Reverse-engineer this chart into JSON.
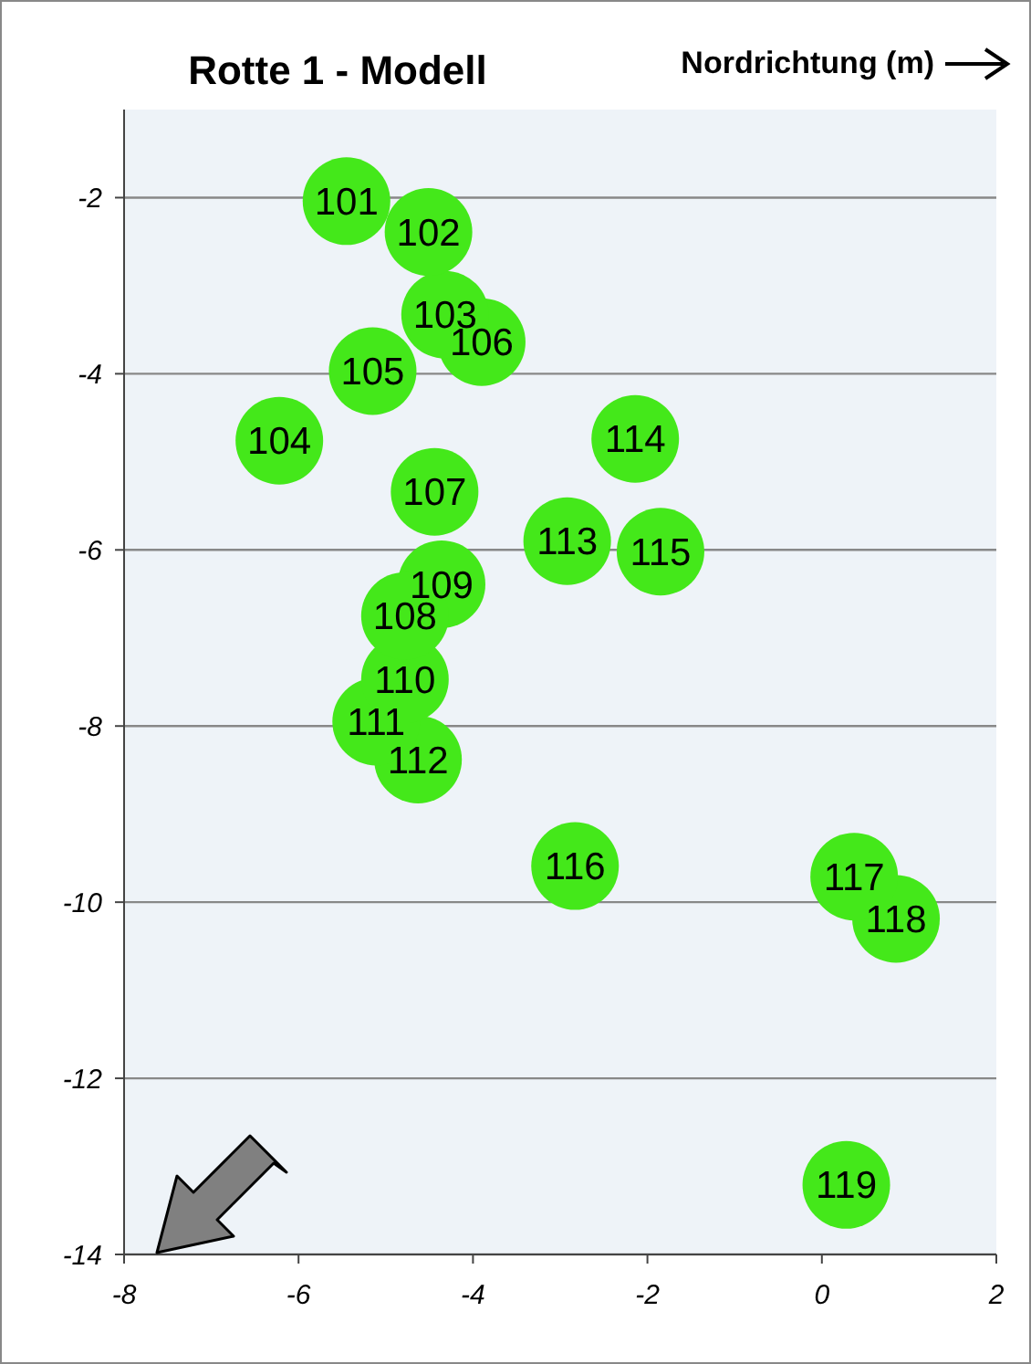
{
  "chart_data": {
    "type": "scatter",
    "title": "Rotte 1 - Modell",
    "xlabel": "Nordrichtung (m)",
    "x": [
      -5.45,
      -4.51,
      -4.32,
      -6.22,
      -5.15,
      -3.9,
      -4.44,
      -4.78,
      -4.36,
      -4.78,
      -5.11,
      -4.63,
      -2.92,
      -2.14,
      -1.85,
      -2.83,
      0.37,
      0.85,
      0.28
    ],
    "values": [
      -2.04,
      -2.39,
      -3.33,
      -4.76,
      -3.97,
      -3.64,
      -5.34,
      -6.75,
      -6.39,
      -7.47,
      -7.95,
      -8.38,
      -5.9,
      -4.74,
      -6.02,
      -9.59,
      -9.71,
      -10.19,
      -13.21
    ],
    "color": "#44e81a",
    "marker": "circle",
    "xlim": [
      -8,
      2
    ],
    "xticks": [
      -8,
      -6,
      -4,
      -2,
      0,
      2
    ],
    "ylim": [
      -14,
      -1
    ],
    "yticks": [
      -14,
      -12,
      -10,
      -8,
      -6,
      -4,
      -2
    ],
    "grid": "y",
    "annotations": [
      {
        "text": "101",
        "x": -5.45,
        "y": -2.04
      },
      {
        "text": "102",
        "x": -4.51,
        "y": -2.39
      },
      {
        "text": "103",
        "x": -4.32,
        "y": -3.33
      },
      {
        "text": "104",
        "x": -6.22,
        "y": -4.76
      },
      {
        "text": "105",
        "x": -5.15,
        "y": -3.97
      },
      {
        "text": "106",
        "x": -3.9,
        "y": -3.64
      },
      {
        "text": "107",
        "x": -4.44,
        "y": -5.34
      },
      {
        "text": "108",
        "x": -4.78,
        "y": -6.75
      },
      {
        "text": "109",
        "x": -4.36,
        "y": -6.39
      },
      {
        "text": "110",
        "x": -4.78,
        "y": -7.47
      },
      {
        "text": "111",
        "x": -5.11,
        "y": -7.95
      },
      {
        "text": "112",
        "x": -4.63,
        "y": -8.38
      },
      {
        "text": "113",
        "x": -2.92,
        "y": -5.9
      },
      {
        "text": "114",
        "x": -2.14,
        "y": -4.74
      },
      {
        "text": "115",
        "x": -1.85,
        "y": -6.02
      },
      {
        "text": "116",
        "x": -2.83,
        "y": -9.59
      },
      {
        "text": "117",
        "x": 0.37,
        "y": -9.71
      },
      {
        "text": "118",
        "x": 0.85,
        "y": -10.19
      },
      {
        "text": "119",
        "x": 0.28,
        "y": -13.21
      }
    ]
  }
}
